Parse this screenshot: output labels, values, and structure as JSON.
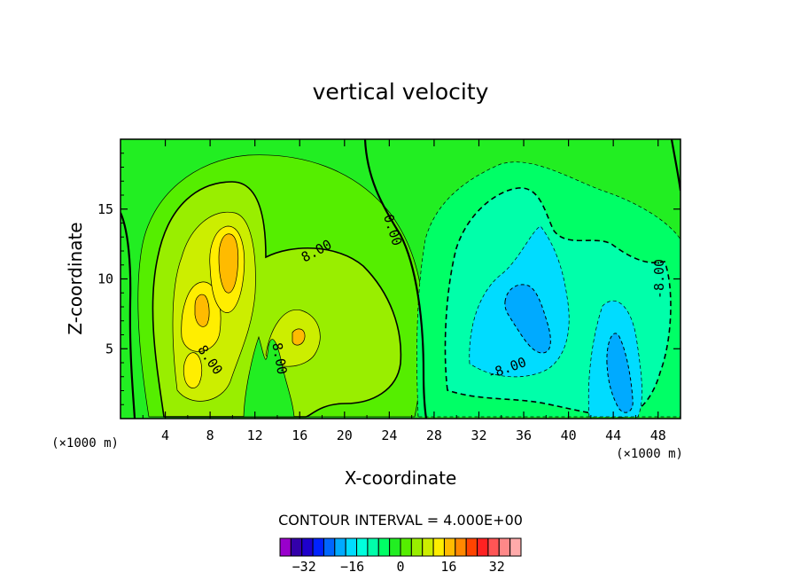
{
  "chart_data": {
    "type": "heatmap",
    "title": "vertical velocity",
    "xlabel": "X-coordinate",
    "ylabel": "Z-coordinate",
    "x_unit": "(×1000 m)",
    "y_unit": "(×1000 m)",
    "xlim": [
      0,
      50
    ],
    "ylim": [
      0,
      20
    ],
    "x_ticks": [
      4,
      8,
      12,
      16,
      20,
      24,
      28,
      32,
      36,
      40,
      44,
      48
    ],
    "y_ticks": [
      5,
      10,
      15
    ],
    "contour_interval_label": "CONTOUR INTERVAL = 4.000E+00",
    "contour_interval": 4,
    "contour_labels": [
      {
        "text": "8.00",
        "x": 17.5,
        "z": 12.0,
        "angle": -28
      },
      {
        "text": "0.00",
        "x": 24.3,
        "z": 13.5,
        "angle": 72
      },
      {
        "text": "8.00",
        "x": 8.0,
        "z": 4.2,
        "angle": 55
      },
      {
        "text": "8.00",
        "x": 14.2,
        "z": 4.3,
        "angle": 80
      },
      {
        "text": "-8.00",
        "x": 34.5,
        "z": 3.6,
        "angle": -20
      },
      {
        "text": "-8.00",
        "x": 48.1,
        "z": 10.0,
        "angle": -90
      }
    ],
    "colorbar": {
      "min": -40,
      "max": 40,
      "step": 4,
      "tick_labels": [
        "-32",
        "-16",
        "0",
        "16",
        "32"
      ],
      "tick_values": [
        -32,
        -16,
        0,
        16,
        32
      ],
      "colors": [
        "#9900cc",
        "#3300aa",
        "#1e00cc",
        "#0022ff",
        "#0066ff",
        "#00aaff",
        "#00dcff",
        "#00ffdd",
        "#00ffaa",
        "#00ff66",
        "#22ee22",
        "#55ee00",
        "#99ee00",
        "#ccee00",
        "#ffee00",
        "#ffbb00",
        "#ff8800",
        "#ff4400",
        "#ff2222",
        "#ff5555",
        "#ff8888",
        "#ffaaaa"
      ]
    },
    "features": [
      {
        "name": "updraft-core",
        "x": 10.0,
        "z": 11.5,
        "max": 24
      },
      {
        "name": "updraft-secondary",
        "x": 7.5,
        "z": 8.0,
        "max": 24
      },
      {
        "name": "updraft-low",
        "x": 6.5,
        "z": 3.5,
        "max": 20
      },
      {
        "name": "downdraft-main",
        "x": 37.0,
        "z": 7.5,
        "min": -20
      },
      {
        "name": "downdraft-east",
        "x": 44.0,
        "z": 4.5,
        "min": -20
      }
    ]
  }
}
